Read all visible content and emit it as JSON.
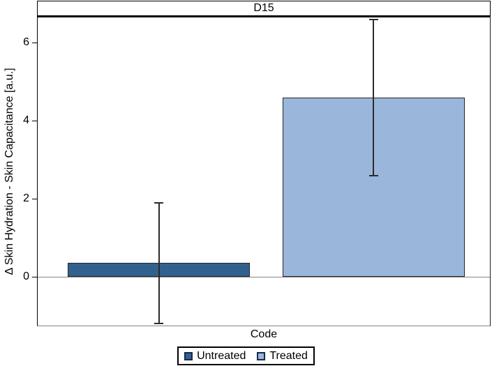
{
  "chart_data": {
    "type": "bar",
    "title": "D15",
    "xlabel": "Code",
    "ylabel": "Δ Skin Hydration - Skin Capacitance [a.u.]",
    "categories": [
      "Untreated",
      "Treated"
    ],
    "values": [
      0.35,
      4.6
    ],
    "error_low": [
      -1.2,
      2.6
    ],
    "error_high": [
      1.9,
      6.6
    ],
    "yticks": [
      0,
      2,
      4,
      6
    ],
    "ylim": [
      -1.25,
      6.65
    ],
    "grid": false,
    "bar_colors": [
      "#33618f",
      "#9ab6db"
    ],
    "bar_border_color": "#262626",
    "error_bar_color": "#2b2b2b",
    "baseline_color": "#858585",
    "axis_line_color": "#000000",
    "legend": {
      "position": "bottom-center",
      "entries": [
        {
          "label": "Untreated",
          "color": "#33618f"
        },
        {
          "label": "Treated",
          "color": "#9ab6db"
        }
      ]
    }
  }
}
